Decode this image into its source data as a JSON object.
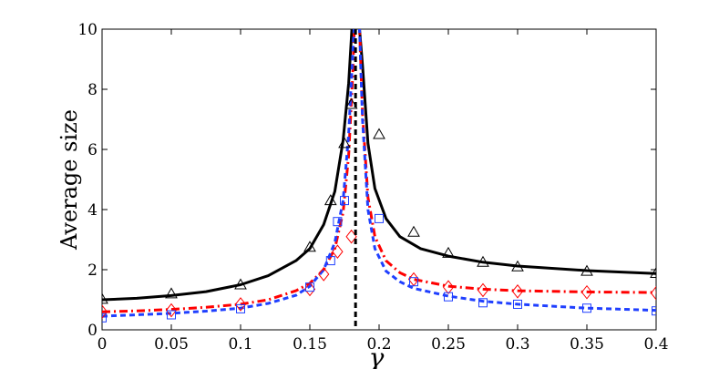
{
  "chart_data": {
    "type": "line",
    "xlabel": "γ",
    "ylabel": "Average size",
    "xlim": [
      0,
      0.4
    ],
    "ylim": [
      0,
      10
    ],
    "xticks": [
      0,
      0.05,
      0.1,
      0.15,
      0.2,
      0.25,
      0.3,
      0.35,
      0.4
    ],
    "xtick_labels": [
      "0",
      "0.05",
      "0.1",
      "0.15",
      "0.2",
      "0.25",
      "0.3",
      "0.35",
      "0.4"
    ],
    "yticks": [
      0,
      2,
      4,
      6,
      8,
      10
    ],
    "ytick_labels": [
      "0",
      "2",
      "4",
      "6",
      "8",
      "10"
    ],
    "critical_x": 0.183,
    "grid": false,
    "legend": "none",
    "series": [
      {
        "marker": "triangle",
        "line_style": "solid",
        "color": "#000000",
        "curve": [
          [
            0,
            1.0
          ],
          [
            0.025,
            1.05
          ],
          [
            0.05,
            1.14
          ],
          [
            0.075,
            1.27
          ],
          [
            0.1,
            1.5
          ],
          [
            0.12,
            1.8
          ],
          [
            0.14,
            2.3
          ],
          [
            0.15,
            2.7
          ],
          [
            0.16,
            3.5
          ],
          [
            0.168,
            4.6
          ],
          [
            0.174,
            6.3
          ],
          [
            0.178,
            8.2
          ],
          [
            0.181,
            10.5
          ],
          [
            0.185,
            10.5
          ],
          [
            0.188,
            8.8
          ],
          [
            0.192,
            6.2
          ],
          [
            0.197,
            4.7
          ],
          [
            0.205,
            3.7
          ],
          [
            0.215,
            3.1
          ],
          [
            0.23,
            2.7
          ],
          [
            0.25,
            2.45
          ],
          [
            0.275,
            2.25
          ],
          [
            0.3,
            2.12
          ],
          [
            0.35,
            1.97
          ],
          [
            0.4,
            1.87
          ]
        ],
        "points": [
          [
            0,
            1.02
          ],
          [
            0.05,
            1.2
          ],
          [
            0.1,
            1.5
          ],
          [
            0.15,
            2.75
          ],
          [
            0.165,
            4.3
          ],
          [
            0.175,
            6.2
          ],
          [
            0.18,
            7.5
          ],
          [
            0.2,
            6.5
          ],
          [
            0.225,
            3.25
          ],
          [
            0.25,
            2.55
          ],
          [
            0.275,
            2.25
          ],
          [
            0.3,
            2.1
          ],
          [
            0.35,
            1.95
          ],
          [
            0.4,
            1.88
          ]
        ]
      },
      {
        "marker": "diamond",
        "line_style": "dash-dot",
        "color": "#ff0000",
        "curve": [
          [
            0,
            0.6
          ],
          [
            0.025,
            0.63
          ],
          [
            0.05,
            0.68
          ],
          [
            0.075,
            0.75
          ],
          [
            0.1,
            0.85
          ],
          [
            0.12,
            1.0
          ],
          [
            0.14,
            1.3
          ],
          [
            0.15,
            1.55
          ],
          [
            0.16,
            2.0
          ],
          [
            0.168,
            2.7
          ],
          [
            0.174,
            3.9
          ],
          [
            0.178,
            5.8
          ],
          [
            0.181,
            8.5
          ],
          [
            0.1825,
            10.5
          ],
          [
            0.1855,
            10.5
          ],
          [
            0.188,
            7.2
          ],
          [
            0.192,
            4.4
          ],
          [
            0.197,
            3.1
          ],
          [
            0.205,
            2.3
          ],
          [
            0.215,
            1.9
          ],
          [
            0.225,
            1.68
          ],
          [
            0.25,
            1.45
          ],
          [
            0.275,
            1.35
          ],
          [
            0.3,
            1.3
          ],
          [
            0.35,
            1.26
          ],
          [
            0.4,
            1.24
          ]
        ],
        "points": [
          [
            0,
            0.6
          ],
          [
            0.05,
            0.65
          ],
          [
            0.1,
            0.85
          ],
          [
            0.15,
            1.35
          ],
          [
            0.16,
            1.85
          ],
          [
            0.17,
            2.6
          ],
          [
            0.18,
            3.1
          ],
          [
            0.225,
            1.68
          ],
          [
            0.25,
            1.42
          ],
          [
            0.275,
            1.32
          ],
          [
            0.3,
            1.28
          ],
          [
            0.35,
            1.25
          ],
          [
            0.4,
            1.22
          ]
        ]
      },
      {
        "marker": "square",
        "line_style": "dashed",
        "color": "#1f3fff",
        "curve": [
          [
            0,
            0.45
          ],
          [
            0.025,
            0.5
          ],
          [
            0.05,
            0.55
          ],
          [
            0.075,
            0.62
          ],
          [
            0.1,
            0.72
          ],
          [
            0.12,
            0.88
          ],
          [
            0.14,
            1.15
          ],
          [
            0.15,
            1.45
          ],
          [
            0.16,
            2.0
          ],
          [
            0.168,
            2.9
          ],
          [
            0.174,
            4.3
          ],
          [
            0.178,
            6.5
          ],
          [
            0.181,
            9.2
          ],
          [
            0.1825,
            10.5
          ],
          [
            0.1855,
            10.5
          ],
          [
            0.188,
            7.0
          ],
          [
            0.192,
            4.0
          ],
          [
            0.197,
            2.7
          ],
          [
            0.205,
            1.95
          ],
          [
            0.215,
            1.6
          ],
          [
            0.225,
            1.38
          ],
          [
            0.25,
            1.12
          ],
          [
            0.275,
            0.95
          ],
          [
            0.3,
            0.85
          ],
          [
            0.35,
            0.72
          ],
          [
            0.4,
            0.65
          ]
        ],
        "points": [
          [
            0,
            0.4
          ],
          [
            0.05,
            0.5
          ],
          [
            0.1,
            0.7
          ],
          [
            0.15,
            1.42
          ],
          [
            0.165,
            2.3
          ],
          [
            0.17,
            3.6
          ],
          [
            0.175,
            4.3
          ],
          [
            0.2,
            3.7
          ],
          [
            0.225,
            1.6
          ],
          [
            0.25,
            1.1
          ],
          [
            0.275,
            0.9
          ],
          [
            0.3,
            0.85
          ],
          [
            0.35,
            0.72
          ],
          [
            0.4,
            0.63
          ]
        ]
      }
    ]
  }
}
